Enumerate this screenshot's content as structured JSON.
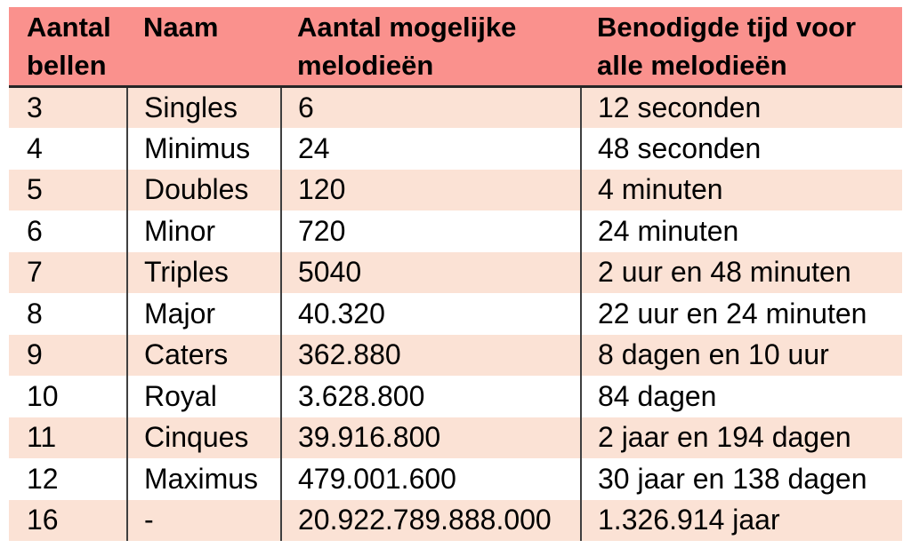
{
  "colors": {
    "header_bg": "#FA918D",
    "row_alt_bg": "#FBE2D5",
    "row_bg": "#FFFFFF",
    "header_divider": "#262626",
    "column_divider": "#3F3F3F",
    "text": "#000000",
    "page_bg": "#FFFFFF"
  },
  "chart_data": {
    "type": "table",
    "title": "",
    "columns": [
      "Aantal bellen",
      "Naam",
      "Aantal mogelijke melodieën",
      "Benodigde tijd voor alle melodieën"
    ],
    "rows": [
      [
        "3",
        "Singles",
        "6",
        "12 seconden"
      ],
      [
        "4",
        "Minimus",
        "24",
        "48 seconden"
      ],
      [
        "5",
        "Doubles",
        "120",
        "4 minuten"
      ],
      [
        "6",
        "Minor",
        "720",
        "24 minuten"
      ],
      [
        "7",
        "Triples",
        "5040",
        "2 uur en 48 minuten"
      ],
      [
        "8",
        "Major",
        "40.320",
        "22 uur en 24 minuten"
      ],
      [
        "9",
        "Caters",
        "362.880",
        "8 dagen en 10 uur"
      ],
      [
        "10",
        "Royal",
        "3.628.800",
        "84 dagen"
      ],
      [
        "11",
        "Cinques",
        "39.916.800",
        "2 jaar en 194 dagen"
      ],
      [
        "12",
        "Maximus",
        "479.001.600",
        "30 jaar en 138 dagen"
      ],
      [
        "16",
        "-",
        "20.922.789.888.000",
        "1.326.914 jaar"
      ]
    ]
  }
}
